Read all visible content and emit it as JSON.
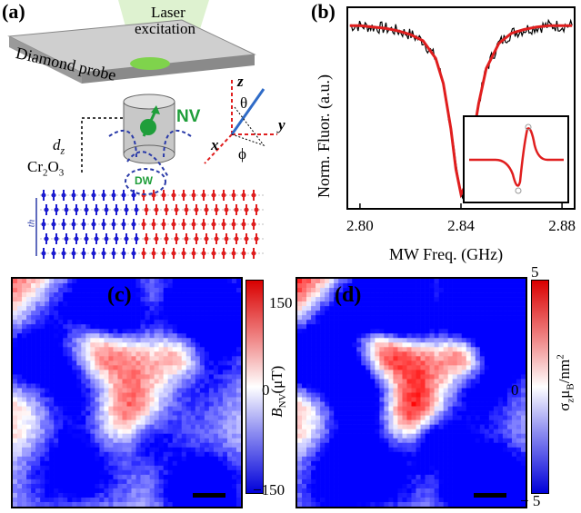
{
  "panel_a": {
    "label": "(a)",
    "laser_line1": "Laser",
    "laser_line2": "excitation",
    "probe_label": "Diamond probe",
    "nv_label": "NV",
    "dz_label": "d",
    "dz_sub": "z",
    "material": "Cr",
    "material_sub1": "2",
    "material_o": "O",
    "material_sub2": "3",
    "dw_label": "DW",
    "th_label": "th",
    "axis_z": "z",
    "axis_y": "y",
    "axis_x": "x",
    "theta": "θ",
    "phi": "ϕ",
    "colors": {
      "blue": "#1b1bd0",
      "red": "#e01e1e",
      "nv": "#1f9e3a",
      "probe": "#b8b8b8"
    }
  },
  "panel_b": {
    "label": "(b)",
    "ylabel": "Norm. Fluor. (a.u.)",
    "xlabel": "MW Freq. (GHz)",
    "xticks": [
      "2.80",
      "2.84",
      "2.88"
    ]
  },
  "panel_c": {
    "label": "(c)",
    "cbar_max": "150",
    "cbar_mid": "0",
    "cbar_min": "−150",
    "cbar_title_main": "B",
    "cbar_title_sub": "NV",
    "cbar_title_unit": "(μT)"
  },
  "panel_d": {
    "label": "(d)",
    "cbar_max": "5",
    "cbar_mid": "0",
    "cbar_min": "− 5",
    "cbar_title": "σ",
    "cbar_title_sub1": "z",
    "cbar_title_mu": "μ",
    "cbar_title_sub2": "B",
    "cbar_title_unit": "/nm",
    "cbar_title_sup": "2"
  },
  "chart_data": {
    "type": "line",
    "xlabel": "MW Freq. (GHz)",
    "ylabel": "Norm. Fluor. (a.u.)",
    "xlim": [
      2.795,
      2.885
    ],
    "x": [
      2.796,
      2.8,
      2.805,
      2.81,
      2.815,
      2.82,
      2.825,
      2.83,
      2.833,
      2.836,
      2.838,
      2.84,
      2.842,
      2.844,
      2.847,
      2.85,
      2.855,
      2.86,
      2.865,
      2.87,
      2.875,
      2.88,
      2.884
    ],
    "series": [
      {
        "values": [
          0.99,
          0.99,
          0.985,
          0.98,
          0.97,
          0.955,
          0.93,
          0.86,
          0.76,
          0.58,
          0.42,
          0.32,
          0.36,
          0.5,
          0.68,
          0.82,
          0.92,
          0.96,
          0.975,
          0.985,
          0.99,
          0.99,
          0.99
        ]
      }
    ],
    "inset": {
      "type": "line",
      "note": "derivative-like dispersive curve"
    }
  }
}
